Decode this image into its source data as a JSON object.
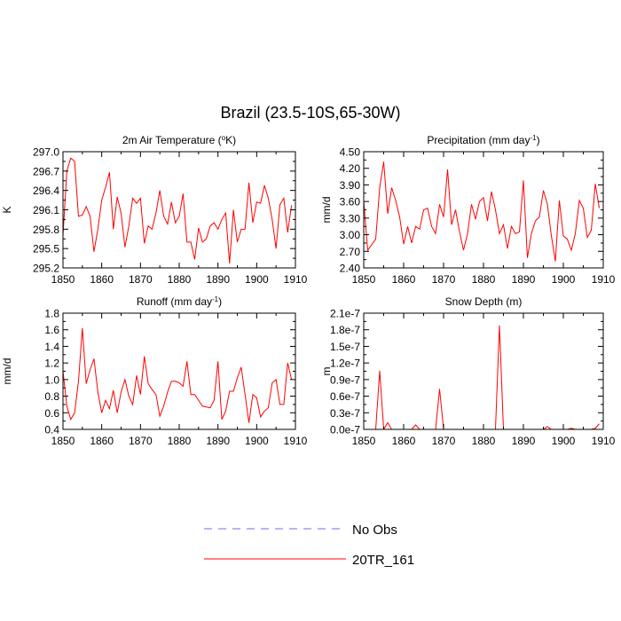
{
  "title": "Brazil (23.5-10S,65-30W)",
  "colors": {
    "series": "#ff0000",
    "obs": "#6b6bff",
    "axis": "#000000"
  },
  "legend": {
    "items": [
      {
        "label": "No Obs",
        "style": "dashed",
        "color": "#6b6bff"
      },
      {
        "label": "20TR_161",
        "style": "solid",
        "color": "#ff0000"
      }
    ]
  },
  "chart_data": [
    {
      "type": "line",
      "title": "2m Air Temperature (°K)",
      "title_parts": [
        "2m Air Temperature (",
        "o",
        "K)"
      ],
      "ylabel": "K",
      "xlim": [
        1850,
        1910
      ],
      "ylim": [
        295.2,
        297.0
      ],
      "yticks": [
        295.2,
        295.5,
        295.8,
        296.1,
        296.4,
        296.7,
        297.0
      ],
      "ytick_labels": [
        "295.2",
        "295.5",
        "295.8",
        "296.1",
        "296.4",
        "296.7",
        "297.0"
      ],
      "xticks": [
        1850,
        1860,
        1870,
        1880,
        1890,
        1900,
        1910
      ],
      "xtick_labels": [
        "1850",
        "1860",
        "1870",
        "1880",
        "1890",
        "1900",
        "1910"
      ],
      "series": [
        {
          "name": "20TR_161",
          "x_start": 1850,
          "values": [
            295.7,
            296.7,
            296.9,
            296.85,
            296.0,
            296.02,
            296.15,
            296.0,
            295.45,
            295.8,
            296.25,
            296.45,
            296.68,
            295.8,
            296.3,
            296.05,
            295.52,
            295.85,
            296.28,
            296.2,
            296.28,
            295.58,
            295.85,
            295.8,
            296.05,
            296.4,
            296.0,
            295.88,
            296.22,
            295.9,
            296.0,
            296.35,
            295.6,
            295.6,
            295.33,
            295.82,
            295.6,
            295.65,
            295.85,
            295.9,
            295.8,
            295.95,
            296.05,
            295.27,
            296.1,
            295.6,
            295.8,
            295.8,
            296.52,
            295.9,
            296.22,
            296.2,
            296.48,
            296.28,
            295.95,
            295.5,
            296.18,
            296.28,
            295.75,
            296.17
          ]
        }
      ]
    },
    {
      "type": "line",
      "title": "Precipitation (mm day⁻¹)",
      "title_parts": [
        "Precipitation (mm day",
        "-1",
        ")"
      ],
      "ylabel": "mm/d",
      "xlim": [
        1850,
        1910
      ],
      "ylim": [
        2.4,
        4.5
      ],
      "yticks": [
        2.4,
        2.7,
        3.0,
        3.3,
        3.6,
        3.9,
        4.2,
        4.5
      ],
      "ytick_labels": [
        "2.40",
        "2.70",
        "3.00",
        "3.30",
        "3.60",
        "3.90",
        "4.20",
        "4.50"
      ],
      "xticks": [
        1850,
        1860,
        1870,
        1880,
        1890,
        1900,
        1910
      ],
      "xtick_labels": [
        "1850",
        "1860",
        "1870",
        "1880",
        "1890",
        "1900",
        "1910"
      ],
      "series": [
        {
          "name": "20TR_161",
          "x_start": 1850,
          "values": [
            3.6,
            2.72,
            2.82,
            2.92,
            3.85,
            4.32,
            3.38,
            3.85,
            3.62,
            3.32,
            2.83,
            3.15,
            2.85,
            3.15,
            3.1,
            3.45,
            3.48,
            3.15,
            3.02,
            3.55,
            3.32,
            4.18,
            3.18,
            3.45,
            3.05,
            2.72,
            3.02,
            3.55,
            3.28,
            3.6,
            3.67,
            3.25,
            3.78,
            3.45,
            3.02,
            3.18,
            2.75,
            3.15,
            3.02,
            3.05,
            3.98,
            2.58,
            3.02,
            3.25,
            3.32,
            3.8,
            3.55,
            2.98,
            2.52,
            3.62,
            2.98,
            2.92,
            2.72,
            3.02,
            3.62,
            3.48,
            2.95,
            3.08,
            3.92,
            3.48
          ]
        }
      ]
    },
    {
      "type": "line",
      "title": "Runoff (mm day⁻¹)",
      "title_parts": [
        "Runoff (mm day",
        "-1",
        ")"
      ],
      "ylabel": "mm/d",
      "xlim": [
        1850,
        1910
      ],
      "ylim": [
        0.4,
        1.8
      ],
      "yticks": [
        0.4,
        0.6,
        0.8,
        1.0,
        1.2,
        1.4,
        1.6,
        1.8
      ],
      "ytick_labels": [
        "0.4",
        "0.6",
        "0.8",
        "1.0",
        "1.2",
        "1.4",
        "1.6",
        "1.8"
      ],
      "xticks": [
        1850,
        1860,
        1870,
        1880,
        1890,
        1900,
        1910
      ],
      "xtick_labels": [
        "1850",
        "1860",
        "1870",
        "1880",
        "1890",
        "1900",
        "1910"
      ],
      "series": [
        {
          "name": "20TR_161",
          "x_start": 1850,
          "values": [
            1.1,
            0.68,
            0.52,
            0.6,
            0.98,
            1.62,
            0.95,
            1.12,
            1.25,
            0.85,
            0.6,
            0.75,
            0.65,
            0.87,
            0.6,
            0.85,
            1.0,
            0.8,
            0.7,
            1.05,
            0.82,
            1.28,
            0.95,
            0.88,
            0.82,
            0.56,
            0.68,
            0.85,
            0.98,
            0.98,
            0.96,
            0.92,
            1.22,
            0.82,
            0.82,
            0.75,
            0.68,
            0.67,
            0.66,
            0.75,
            1.22,
            0.52,
            0.62,
            0.86,
            0.86,
            1.02,
            1.15,
            0.82,
            0.48,
            0.82,
            0.78,
            0.55,
            0.62,
            0.66,
            0.96,
            1.0,
            0.7,
            0.7,
            1.2,
            1.0
          ]
        }
      ]
    },
    {
      "type": "line",
      "title": "Snow Depth (m)",
      "title_parts": [
        "Snow Depth (m)"
      ],
      "ylabel": "m",
      "xlim": [
        1850,
        1910
      ],
      "ylim": [
        0,
        2.1e-07
      ],
      "yticks": [
        0,
        3e-08,
        6e-08,
        9e-08,
        1.2e-07,
        1.5e-07,
        1.8e-07,
        2.1e-07
      ],
      "ytick_labels": [
        "0.0e-7",
        "0.3e-7",
        "0.6e-7",
        "0.9e-7",
        "1.2e-7",
        "1.5e-7",
        "1.8e-7",
        "2.1e-7"
      ],
      "xticks": [
        1850,
        1860,
        1870,
        1880,
        1890,
        1900,
        1910
      ],
      "xtick_labels": [
        "1850",
        "1860",
        "1870",
        "1880",
        "1890",
        "1900",
        "1910"
      ],
      "series": [
        {
          "name": "20TR_161",
          "x_start": 1850,
          "values": [
            0,
            0,
            0,
            0,
            1.06e-07,
            0,
            1.2e-08,
            0,
            0,
            0,
            0,
            0,
            0,
            8e-09,
            0,
            0,
            0,
            0,
            0,
            7.3e-08,
            0,
            0,
            0,
            0,
            0,
            0,
            0,
            0,
            0,
            0,
            0,
            0,
            0,
            0,
            1.88e-07,
            0,
            0,
            0,
            0,
            0,
            0,
            0,
            0,
            0,
            0,
            0,
            5e-09,
            0,
            0,
            0,
            0,
            0,
            2e-09,
            0,
            0,
            0,
            0,
            0,
            2e-09,
            1e-08
          ]
        }
      ]
    }
  ]
}
